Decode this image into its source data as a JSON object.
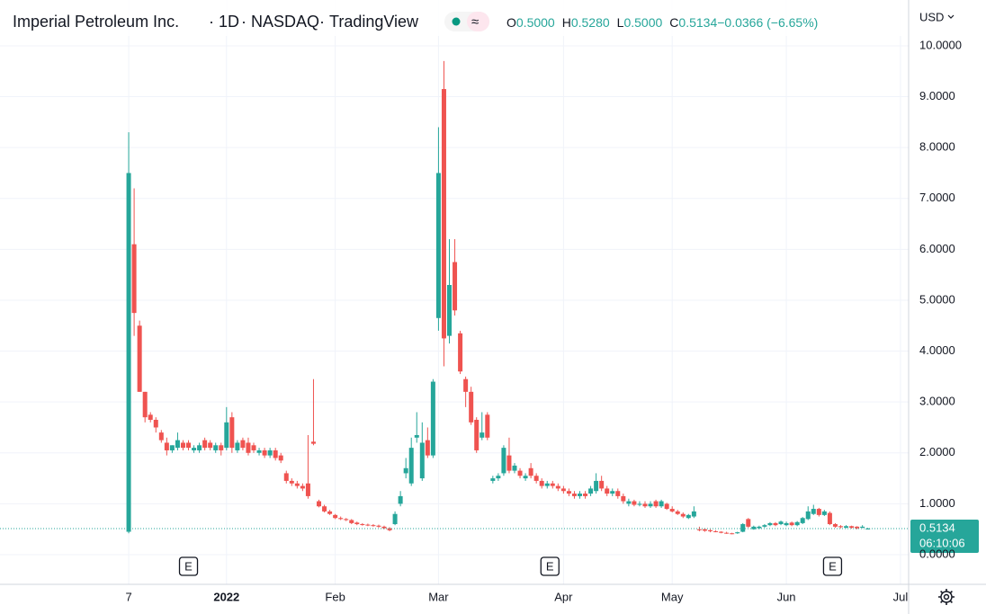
{
  "chart_data": {
    "type": "candlestick",
    "title": "Imperial Petroleum Inc.",
    "interval": "1D",
    "exchange": "NASDAQ",
    "source": "TradingView",
    "currency": "USD",
    "legend": [
      {
        "key": "O",
        "label": "0.5000"
      },
      {
        "key": "H",
        "label": "0.5280"
      },
      {
        "key": "L",
        "label": "0.5000"
      },
      {
        "key": "C",
        "label": "0.5134"
      },
      {
        "key": "",
        "label": "−0.0366 (−6.65%)"
      }
    ],
    "up_color": "#26a69a",
    "down_color": "#ef5350",
    "ylim": [
      -0.583,
      10.9
    ],
    "yticks": [
      {
        "value": 0,
        "label": "0.0000"
      },
      {
        "value": 1,
        "label": "1.0000"
      },
      {
        "value": 2,
        "label": "2.0000"
      },
      {
        "value": 3,
        "label": "3.0000"
      },
      {
        "value": 4,
        "label": "4.0000"
      },
      {
        "value": 5,
        "label": "5.0000"
      },
      {
        "value": 6,
        "label": "6.0000"
      },
      {
        "value": 7,
        "label": "7.0000"
      },
      {
        "value": 8,
        "label": "8.0000"
      },
      {
        "value": 9,
        "label": "9.0000"
      },
      {
        "value": 10,
        "label": "10.0000"
      }
    ],
    "xlim": [
      -23.68,
      143.5
    ],
    "xticks": [
      {
        "value": 0,
        "label": "7"
      },
      {
        "value": 18,
        "label": "2022"
      },
      {
        "value": 38,
        "label": "Feb"
      },
      {
        "value": 57,
        "label": "Mar"
      },
      {
        "value": 80,
        "label": "Apr"
      },
      {
        "value": 100,
        "label": "May"
      },
      {
        "value": 121,
        "label": "Jun"
      },
      {
        "value": 142,
        "label": "Jul"
      }
    ],
    "grid": true,
    "last_price": {
      "value": 0.5134,
      "label": "0.5134"
    },
    "countdown": "06:10:06",
    "earnings": [
      {
        "index": 11,
        "label": "E"
      },
      {
        "index": 77.5,
        "label": "E"
      },
      {
        "index": 129.5,
        "label": "E"
      }
    ],
    "ohlc": [
      [
        0.45,
        8.3,
        0.42,
        7.5
      ],
      [
        6.1,
        7.2,
        4.3,
        4.75
      ],
      [
        4.5,
        4.6,
        3.2,
        3.2
      ],
      [
        3.2,
        3.2,
        2.6,
        2.7
      ],
      [
        2.75,
        2.8,
        2.6,
        2.65
      ],
      [
        2.65,
        2.7,
        2.4,
        2.5
      ],
      [
        2.4,
        2.45,
        2.2,
        2.25
      ],
      [
        2.2,
        2.3,
        1.95,
        2.05
      ],
      [
        2.05,
        2.15,
        2.0,
        2.15
      ],
      [
        2.1,
        2.4,
        2.05,
        2.25
      ],
      [
        2.2,
        2.25,
        2.05,
        2.1
      ],
      [
        2.2,
        2.25,
        2.05,
        2.1
      ],
      [
        2.05,
        2.15,
        2.0,
        2.1
      ],
      [
        2.05,
        2.2,
        2.0,
        2.15
      ],
      [
        2.25,
        2.3,
        2.05,
        2.1
      ],
      [
        2.2,
        2.25,
        2.05,
        2.1
      ],
      [
        2.05,
        2.2,
        2.0,
        2.15
      ],
      [
        2.15,
        2.2,
        1.95,
        2.05
      ],
      [
        2.1,
        2.9,
        2.05,
        2.6
      ],
      [
        2.7,
        2.8,
        2.0,
        2.1
      ],
      [
        2.05,
        2.25,
        2.0,
        2.2
      ],
      [
        2.25,
        2.3,
        2.05,
        2.1
      ],
      [
        2.2,
        2.3,
        1.95,
        2.0
      ],
      [
        2.15,
        2.2,
        2.0,
        2.05
      ],
      [
        2.0,
        2.1,
        1.95,
        2.05
      ],
      [
        2.05,
        2.1,
        1.9,
        1.95
      ],
      [
        1.95,
        2.1,
        1.9,
        2.05
      ],
      [
        2.05,
        2.1,
        1.85,
        1.9
      ],
      [
        1.95,
        2.0,
        1.8,
        1.85
      ],
      [
        1.6,
        1.65,
        1.4,
        1.45
      ],
      [
        1.45,
        1.5,
        1.35,
        1.4
      ],
      [
        1.4,
        1.45,
        1.3,
        1.35
      ],
      [
        1.35,
        1.4,
        1.25,
        1.3
      ],
      [
        1.4,
        2.35,
        1.1,
        1.15
      ],
      [
        2.22,
        3.45,
        2.15,
        2.18
      ],
      [
        1.05,
        1.08,
        0.93,
        0.95
      ],
      [
        0.95,
        0.98,
        0.83,
        0.85
      ],
      [
        0.85,
        0.88,
        0.78,
        0.8
      ],
      [
        0.78,
        0.8,
        0.7,
        0.72
      ],
      [
        0.72,
        0.75,
        0.68,
        0.7
      ],
      [
        0.7,
        0.72,
        0.66,
        0.68
      ],
      [
        0.68,
        0.7,
        0.6,
        0.62
      ],
      [
        0.63,
        0.65,
        0.58,
        0.6
      ],
      [
        0.6,
        0.62,
        0.57,
        0.59
      ],
      [
        0.59,
        0.61,
        0.56,
        0.58
      ],
      [
        0.58,
        0.6,
        0.55,
        0.57
      ],
      [
        0.57,
        0.59,
        0.53,
        0.55
      ],
      [
        0.55,
        0.57,
        0.5,
        0.52
      ],
      [
        0.52,
        0.54,
        0.46,
        0.48
      ],
      [
        0.6,
        0.85,
        0.58,
        0.8
      ],
      [
        1.0,
        1.25,
        0.95,
        1.15
      ],
      [
        1.6,
        1.9,
        1.5,
        1.7
      ],
      [
        1.4,
        2.3,
        1.35,
        2.1
      ],
      [
        2.3,
        2.8,
        2.2,
        2.35
      ],
      [
        1.5,
        2.6,
        1.45,
        2.2
      ],
      [
        2.25,
        2.5,
        1.9,
        1.95
      ],
      [
        1.95,
        3.45,
        1.9,
        3.4
      ],
      [
        4.65,
        8.4,
        4.4,
        7.5
      ],
      [
        9.15,
        9.7,
        3.7,
        4.25
      ],
      [
        4.3,
        6.2,
        4.15,
        5.3
      ],
      [
        5.75,
        6.2,
        4.7,
        4.8
      ],
      [
        4.35,
        4.4,
        3.55,
        3.6
      ],
      [
        3.45,
        3.5,
        2.9,
        3.2
      ],
      [
        3.2,
        3.3,
        2.55,
        2.6
      ],
      [
        2.65,
        2.7,
        2.0,
        2.05
      ],
      [
        2.3,
        2.8,
        2.25,
        2.4
      ],
      [
        2.75,
        2.8,
        2.25,
        2.3
      ],
      [
        1.45,
        1.55,
        1.4,
        1.5
      ],
      [
        1.5,
        1.6,
        1.45,
        1.55
      ],
      [
        1.6,
        2.15,
        1.55,
        2.1
      ],
      [
        1.95,
        2.3,
        1.6,
        1.65
      ],
      [
        1.65,
        1.8,
        1.6,
        1.75
      ],
      [
        1.65,
        1.7,
        1.5,
        1.55
      ],
      [
        1.5,
        1.6,
        1.45,
        1.55
      ],
      [
        1.7,
        1.8,
        1.5,
        1.55
      ],
      [
        1.55,
        1.6,
        1.4,
        1.45
      ],
      [
        1.45,
        1.5,
        1.3,
        1.35
      ],
      [
        1.35,
        1.45,
        1.3,
        1.4
      ],
      [
        1.4,
        1.45,
        1.3,
        1.35
      ],
      [
        1.35,
        1.4,
        1.25,
        1.3
      ],
      [
        1.3,
        1.35,
        1.2,
        1.25
      ],
      [
        1.25,
        1.3,
        1.15,
        1.2
      ],
      [
        1.2,
        1.25,
        1.1,
        1.15
      ],
      [
        1.15,
        1.25,
        1.1,
        1.2
      ],
      [
        1.2,
        1.25,
        1.1,
        1.15
      ],
      [
        1.2,
        1.35,
        1.15,
        1.3
      ],
      [
        1.25,
        1.6,
        1.2,
        1.45
      ],
      [
        1.45,
        1.55,
        1.25,
        1.3
      ],
      [
        1.3,
        1.35,
        1.15,
        1.2
      ],
      [
        1.2,
        1.3,
        1.15,
        1.25
      ],
      [
        1.25,
        1.3,
        1.1,
        1.15
      ],
      [
        1.15,
        1.2,
        1.0,
        1.05
      ],
      [
        1.0,
        1.1,
        0.95,
        1.05
      ],
      [
        1.05,
        1.08,
        0.95,
        0.98
      ],
      [
        0.98,
        1.05,
        0.95,
        1.0
      ],
      [
        1.0,
        1.05,
        0.92,
        0.95
      ],
      [
        0.95,
        1.05,
        0.92,
        1.0
      ],
      [
        1.05,
        1.08,
        0.92,
        0.95
      ],
      [
        0.95,
        1.08,
        0.92,
        1.05
      ],
      [
        1.0,
        1.02,
        0.88,
        0.9
      ],
      [
        0.9,
        0.95,
        0.83,
        0.85
      ],
      [
        0.85,
        0.88,
        0.78,
        0.8
      ],
      [
        0.8,
        0.83,
        0.72,
        0.75
      ],
      [
        0.72,
        0.8,
        0.7,
        0.78
      ],
      [
        0.75,
        0.95,
        0.72,
        0.85
      ],
      [
        0.5,
        0.55,
        0.46,
        0.48
      ],
      [
        0.5,
        0.52,
        0.45,
        0.47
      ],
      [
        0.48,
        0.5,
        0.44,
        0.46
      ],
      [
        0.46,
        0.48,
        0.44,
        0.45
      ],
      [
        0.45,
        0.46,
        0.42,
        0.43
      ],
      [
        0.43,
        0.45,
        0.41,
        0.42
      ],
      [
        0.42,
        0.43,
        0.4,
        0.41
      ],
      [
        0.42,
        0.45,
        0.41,
        0.44
      ],
      [
        0.45,
        0.62,
        0.44,
        0.6
      ],
      [
        0.7,
        0.72,
        0.53,
        0.55
      ],
      [
        0.5,
        0.57,
        0.49,
        0.55
      ],
      [
        0.52,
        0.57,
        0.5,
        0.55
      ],
      [
        0.55,
        0.6,
        0.53,
        0.58
      ],
      [
        0.58,
        0.64,
        0.56,
        0.62
      ],
      [
        0.62,
        0.64,
        0.56,
        0.58
      ],
      [
        0.6,
        0.67,
        0.58,
        0.65
      ],
      [
        0.58,
        0.65,
        0.56,
        0.62
      ],
      [
        0.63,
        0.65,
        0.56,
        0.58
      ],
      [
        0.58,
        0.66,
        0.56,
        0.64
      ],
      [
        0.62,
        0.74,
        0.6,
        0.72
      ],
      [
        0.7,
        0.95,
        0.68,
        0.85
      ],
      [
        0.8,
        0.98,
        0.78,
        0.9
      ],
      [
        0.9,
        0.92,
        0.75,
        0.78
      ],
      [
        0.78,
        0.88,
        0.76,
        0.85
      ],
      [
        0.82,
        0.85,
        0.58,
        0.6
      ],
      [
        0.6,
        0.62,
        0.53,
        0.55
      ],
      [
        0.56,
        0.58,
        0.52,
        0.54
      ],
      [
        0.53,
        0.58,
        0.52,
        0.56
      ],
      [
        0.56,
        0.57,
        0.51,
        0.53
      ],
      [
        0.55,
        0.56,
        0.5,
        0.52
      ],
      [
        0.53,
        0.58,
        0.52,
        0.55
      ],
      [
        0.5,
        0.528,
        0.5,
        0.5134
      ]
    ]
  }
}
